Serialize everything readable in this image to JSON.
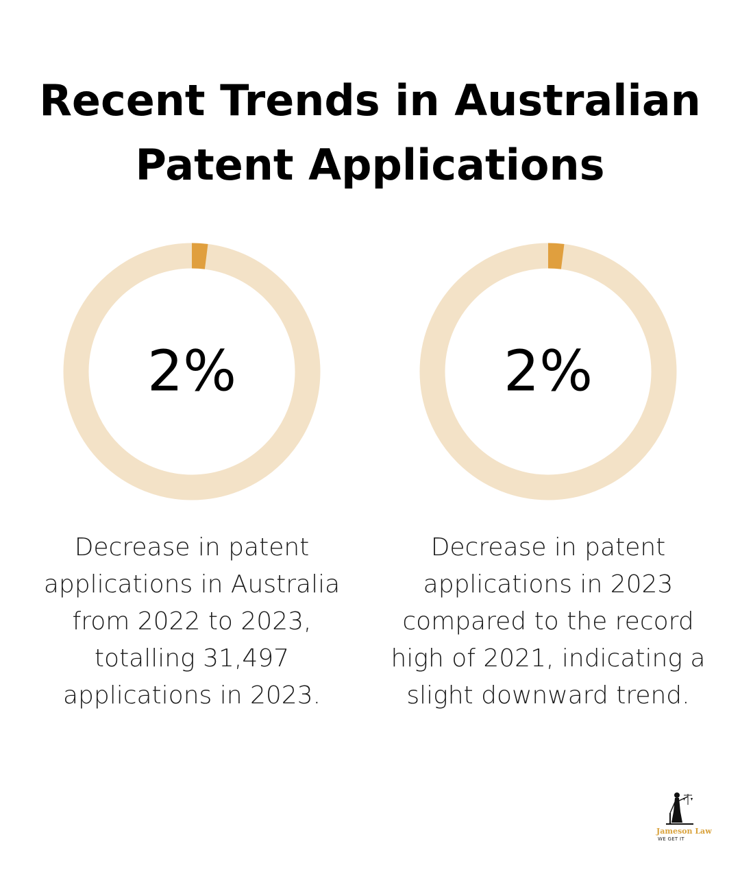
{
  "title": {
    "line1": "Recent Trends in Australian",
    "line2": "Patent Applications"
  },
  "colors": {
    "ring_track": "#f3e2c7",
    "ring_fill": "#e09f3e",
    "text": "#000000"
  },
  "chart_data": [
    {
      "type": "pie",
      "values": [
        2,
        98
      ],
      "center_label": "2%",
      "description": "Decrease in patent applications in Australia from 2022 to 2023, totalling 31,497 applications in 2023."
    },
    {
      "type": "pie",
      "values": [
        2,
        98
      ],
      "center_label": "2%",
      "description": "Decrease in patent applications in 2023 compared to the record high of 2021, indicating a slight downward trend."
    }
  ],
  "logo": {
    "name": "Jameson Law",
    "tagline": "WE GET IT"
  }
}
